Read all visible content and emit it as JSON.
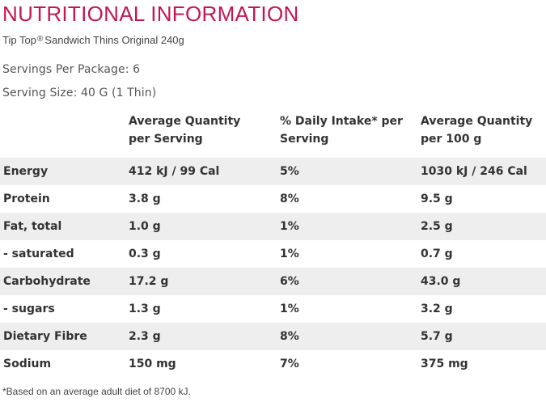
{
  "title": "NUTRITIONAL INFORMATION",
  "product": {
    "brand": "Tip Top",
    "trademark": "®",
    "name": "Sandwich Thins Original 240g"
  },
  "servings_per_package": "Servings Per Package: 6",
  "serving_size": "Serving Size: 40 G (1 Thin)",
  "table": {
    "headers": [
      "",
      "Average Quantity per Serving",
      "% Daily Intake* per Serving",
      "Average Quantity per 100 g"
    ],
    "rows": [
      [
        "Energy",
        "412 kJ / 99 Cal",
        "5%",
        "1030 kJ / 246 Cal"
      ],
      [
        "Protein",
        "3.8 g",
        "8%",
        "9.5 g"
      ],
      [
        "Fat, total",
        "1.0 g",
        "1%",
        "2.5 g"
      ],
      [
        "- saturated",
        "0.3 g",
        "1%",
        "0.7 g"
      ],
      [
        "Carbohydrate",
        "17.2 g",
        "6%",
        "43.0 g"
      ],
      [
        "- sugars",
        "1.3 g",
        "1%",
        "3.2 g"
      ],
      [
        "Dietary Fibre",
        "2.3 g",
        "8%",
        "5.7 g"
      ],
      [
        "Sodium",
        "150 mg",
        "7%",
        "375 mg"
      ]
    ]
  },
  "footnote": "*Based on an average adult diet of 8700 kJ.",
  "colors": {
    "title": "#c4174f",
    "row_shade": "#eeeeee"
  }
}
